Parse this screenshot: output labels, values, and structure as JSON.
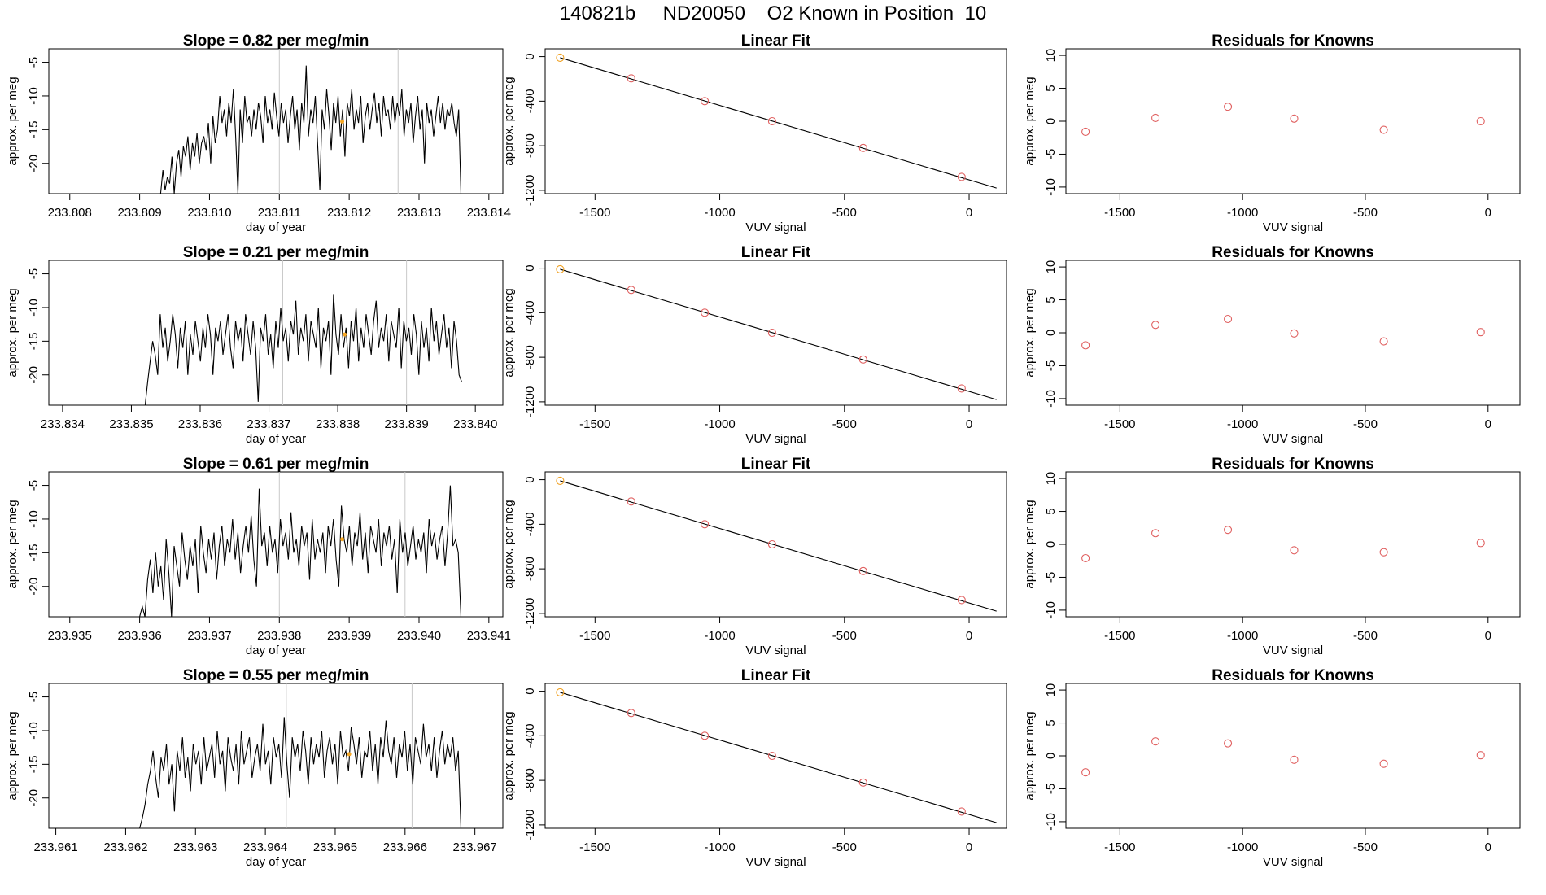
{
  "figure_title": "140821b     ND20050    O2 Known in Position  10",
  "chart_data": [
    {
      "type": "line",
      "title": "Slope =  0.82  per meg/min",
      "xlabel": "day of year",
      "ylabel": "approx. per meg",
      "xlim": [
        233.8077,
        233.8142
      ],
      "ylim": [
        -24.5,
        -3
      ],
      "xticks": [
        "233.808",
        "233.809",
        "233.810",
        "233.811",
        "233.812",
        "233.813",
        "233.814"
      ],
      "yticks": [
        "-5",
        "-10",
        "-15",
        "-20"
      ],
      "vlines": [
        233.811,
        233.8127
      ],
      "marker": {
        "x": 233.8119,
        "y": -13.8,
        "color": "#f5a623"
      },
      "trace": {
        "x_start": 233.8093,
        "x_end": 233.8136,
        "values": [
          -24.5,
          -21,
          -24,
          -22,
          -23,
          -19,
          -24.5,
          -20,
          -18,
          -22,
          -17.5,
          -19,
          -16,
          -21,
          -17,
          -19,
          -15.5,
          -20,
          -17,
          -16,
          -18,
          -14,
          -20,
          -13,
          -17,
          -15,
          -10,
          -14,
          -12,
          -16,
          -11,
          -14,
          -9,
          -16,
          -24.5,
          -12,
          -17,
          -10,
          -14,
          -13,
          -16,
          -12,
          -15,
          -11,
          -13,
          -17,
          -10,
          -14,
          -12,
          -15,
          -9.5,
          -13,
          -16,
          -11,
          -14,
          -12,
          -17,
          -13,
          -10,
          -15,
          -12,
          -18,
          -11,
          -14,
          -5.5,
          -16,
          -12,
          -14,
          -10,
          -17,
          -24,
          -12,
          -15,
          -9,
          -13,
          -18,
          -11,
          -14,
          -10,
          -16,
          -12,
          -19,
          -11,
          -13,
          -9,
          -15,
          -12,
          -14,
          -10,
          -17,
          -13,
          -11,
          -15,
          -12,
          -9.5,
          -14,
          -11,
          -16,
          -10,
          -13,
          -12,
          -15,
          -10,
          -14,
          -11,
          -13,
          -9,
          -16,
          -12,
          -14,
          -11,
          -17,
          -13,
          -10,
          -15,
          -12,
          -20,
          -11,
          -14,
          -12,
          -16,
          -13,
          -10,
          -14,
          -11,
          -15,
          -12,
          -13,
          -11,
          -14,
          -16,
          -12,
          -24.5
        ]
      }
    },
    {
      "type": "scatter",
      "title": "Linear Fit",
      "xlabel": "VUV signal",
      "ylabel": "approx. per meg",
      "xlim": [
        -1700,
        150
      ],
      "ylim": [
        -1230,
        70
      ],
      "xticks": [
        "-1500",
        "-1000",
        "-500",
        "0"
      ],
      "yticks": [
        "0",
        "-400",
        "-800",
        "-1200"
      ],
      "fit_line": [
        [
          -1640,
          -10
        ],
        [
          110,
          -1180
        ]
      ],
      "points": [
        [
          -1640,
          -10
        ],
        [
          -1355,
          -195
        ],
        [
          -1060,
          -400
        ],
        [
          -790,
          -580
        ],
        [
          -425,
          -820
        ],
        [
          -30,
          -1080
        ]
      ],
      "highlight_point_index": 0
    },
    {
      "type": "scatter",
      "title": "Residuals for Knowns",
      "xlabel": "VUV signal",
      "ylabel": "approx. per meg",
      "xlim": [
        -1720,
        130
      ],
      "ylim": [
        -11,
        11
      ],
      "xticks": [
        "-1500",
        "-1000",
        "-500",
        "0"
      ],
      "yticks": [
        "10",
        "5",
        "0",
        "-5",
        "-10"
      ],
      "points": [
        [
          -1640,
          -1.6
        ],
        [
          -1355,
          0.5
        ],
        [
          -1060,
          2.2
        ],
        [
          -790,
          0.4
        ],
        [
          -425,
          -1.3
        ],
        [
          -30,
          0
        ]
      ]
    },
    {
      "type": "line",
      "title": "Slope =  0.21  per meg/min",
      "xlabel": "day of year",
      "ylabel": "approx. per meg",
      "xlim": [
        233.8338,
        233.8404
      ],
      "ylim": [
        -24.5,
        -3
      ],
      "xticks": [
        "233.834",
        "233.835",
        "233.836",
        "233.837",
        "233.838",
        "233.839",
        "233.840"
      ],
      "yticks": [
        "-5",
        "-10",
        "-15",
        "-20"
      ],
      "vlines": [
        233.8372,
        233.839
      ],
      "marker": {
        "x": 233.8381,
        "y": -14,
        "color": "#f5a623"
      },
      "trace": {
        "x_start": 233.8352,
        "x_end": 233.8398,
        "values": [
          -24.5,
          -21,
          -18,
          -15,
          -17,
          -20,
          -11,
          -16,
          -13,
          -18,
          -15,
          -11,
          -14,
          -19,
          -13,
          -16,
          -12,
          -20,
          -14,
          -17,
          -12,
          -15,
          -18,
          -13,
          -16,
          -11,
          -14,
          -20,
          -13,
          -15,
          -12,
          -17,
          -14,
          -11,
          -16,
          -19,
          -12,
          -15,
          -13,
          -18,
          -11,
          -14,
          -17,
          -12,
          -16,
          -24,
          -13,
          -15,
          -11,
          -17,
          -14,
          -19,
          -12,
          -16,
          -10,
          -15,
          -13,
          -18,
          -12,
          -14,
          -9,
          -17,
          -13,
          -15,
          -11,
          -18,
          -12,
          -14,
          -16,
          -10,
          -19,
          -13,
          -15,
          -12,
          -20,
          -8,
          -14,
          -17,
          -11,
          -16,
          -13,
          -19,
          -12,
          -15,
          -10,
          -18,
          -13,
          -16,
          -11,
          -14,
          -17,
          -12,
          -9,
          -16,
          -13,
          -15,
          -11,
          -18,
          -12,
          -14,
          -16,
          -10,
          -19,
          -12,
          -15,
          -13,
          -17,
          -11,
          -14,
          -20,
          -12,
          -16,
          -13,
          -18,
          -10,
          -15,
          -12,
          -17,
          -14,
          -11,
          -16,
          -13,
          -19,
          -12,
          -15,
          -20,
          -21
        ]
      }
    },
    {
      "type": "scatter",
      "title": "Linear Fit",
      "xlabel": "VUV signal",
      "ylabel": "approx. per meg",
      "xlim": [
        -1700,
        150
      ],
      "ylim": [
        -1230,
        70
      ],
      "xticks": [
        "-1500",
        "-1000",
        "-500",
        "0"
      ],
      "yticks": [
        "0",
        "-400",
        "-800",
        "-1200"
      ],
      "fit_line": [
        [
          -1640,
          -10
        ],
        [
          110,
          -1180
        ]
      ],
      "points": [
        [
          -1640,
          -10
        ],
        [
          -1355,
          -195
        ],
        [
          -1060,
          -400
        ],
        [
          -790,
          -580
        ],
        [
          -425,
          -820
        ],
        [
          -30,
          -1080
        ]
      ],
      "highlight_point_index": 0
    },
    {
      "type": "scatter",
      "title": "Residuals for Knowns",
      "xlabel": "VUV signal",
      "ylabel": "approx. per meg",
      "xlim": [
        -1720,
        130
      ],
      "ylim": [
        -11,
        11
      ],
      "xticks": [
        "-1500",
        "-1000",
        "-500",
        "0"
      ],
      "yticks": [
        "10",
        "5",
        "0",
        "-5",
        "-10"
      ],
      "points": [
        [
          -1640,
          -1.9
        ],
        [
          -1355,
          1.2
        ],
        [
          -1060,
          2.1
        ],
        [
          -790,
          -0.1
        ],
        [
          -425,
          -1.3
        ],
        [
          -30,
          0.1
        ]
      ]
    },
    {
      "type": "line",
      "title": "Slope =  0.61  per meg/min",
      "xlabel": "day of year",
      "ylabel": "approx. per meg",
      "xlim": [
        233.9347,
        233.9412
      ],
      "ylim": [
        -24.5,
        -3
      ],
      "xticks": [
        "233.935",
        "233.936",
        "233.937",
        "233.938",
        "233.939",
        "233.940",
        "233.941"
      ],
      "yticks": [
        "-5",
        "-10",
        "-15",
        "-20"
      ],
      "vlines": [
        233.938,
        233.9398
      ],
      "marker": {
        "x": 233.9389,
        "y": -13,
        "color": "#f5a623"
      },
      "trace": {
        "x_start": 233.936,
        "x_end": 233.9406,
        "values": [
          -24.5,
          -23,
          -24.5,
          -19,
          -16,
          -21,
          -15,
          -20,
          -17,
          -22,
          -13,
          -18,
          -24.5,
          -14,
          -17,
          -20,
          -12,
          -16,
          -19,
          -14,
          -17,
          -13,
          -21,
          -11,
          -15,
          -18,
          -13,
          -16,
          -12,
          -19,
          -14,
          -11,
          -17,
          -13,
          -15,
          -10,
          -16,
          -12,
          -18,
          -14,
          -11,
          -15,
          -9.5,
          -16,
          -20,
          -5.5,
          -14,
          -12,
          -17,
          -11,
          -15,
          -13,
          -18,
          -10,
          -14,
          -12,
          -16,
          -9,
          -15,
          -13,
          -17,
          -11,
          -14,
          -12,
          -19,
          -10,
          -16,
          -13,
          -15,
          -12,
          -18,
          -11,
          -14,
          -10,
          -16,
          -20,
          -8,
          -13,
          -15,
          -11,
          -17,
          -12,
          -14,
          -9,
          -16,
          -12,
          -18,
          -11,
          -13,
          -15,
          -10,
          -17,
          -12,
          -14,
          -11,
          -16,
          -13,
          -21,
          -10,
          -15,
          -12,
          -17,
          -14,
          -11,
          -16,
          -13,
          -15,
          -12,
          -18,
          -10,
          -14,
          -12,
          -16,
          -13,
          -11,
          -17,
          -12,
          -5,
          -14,
          -13,
          -15,
          -24.5
        ]
      }
    },
    {
      "type": "scatter",
      "title": "Linear Fit",
      "xlabel": "VUV signal",
      "ylabel": "approx. per meg",
      "xlim": [
        -1700,
        150
      ],
      "ylim": [
        -1230,
        70
      ],
      "xticks": [
        "-1500",
        "-1000",
        "-500",
        "0"
      ],
      "yticks": [
        "0",
        "-400",
        "-800",
        "-1200"
      ],
      "fit_line": [
        [
          -1640,
          -10
        ],
        [
          110,
          -1180
        ]
      ],
      "points": [
        [
          -1640,
          -10
        ],
        [
          -1355,
          -195
        ],
        [
          -1060,
          -400
        ],
        [
          -790,
          -580
        ],
        [
          -425,
          -820
        ],
        [
          -30,
          -1080
        ]
      ],
      "highlight_point_index": 0
    },
    {
      "type": "scatter",
      "title": "Residuals for Knowns",
      "xlabel": "VUV signal",
      "ylabel": "approx. per meg",
      "xlim": [
        -1720,
        130
      ],
      "ylim": [
        -11,
        11
      ],
      "xticks": [
        "-1500",
        "-1000",
        "-500",
        "0"
      ],
      "yticks": [
        "10",
        "5",
        "0",
        "-5",
        "-10"
      ],
      "points": [
        [
          -1640,
          -2.1
        ],
        [
          -1355,
          1.7
        ],
        [
          -1060,
          2.2
        ],
        [
          -790,
          -0.9
        ],
        [
          -425,
          -1.2
        ],
        [
          -30,
          0.2
        ]
      ]
    },
    {
      "type": "line",
      "title": "Slope =  0.55  per meg/min",
      "xlabel": "day of year",
      "ylabel": "approx. per meg",
      "xlim": [
        233.9609,
        233.9674
      ],
      "ylim": [
        -24.5,
        -3
      ],
      "xticks": [
        "233.961",
        "233.962",
        "233.963",
        "233.964",
        "233.965",
        "233.966",
        "233.967"
      ],
      "yticks": [
        "-5",
        "-10",
        "-15",
        "-20"
      ],
      "vlines": [
        233.9643,
        233.9661
      ],
      "marker": {
        "x": 233.9652,
        "y": -13.5,
        "color": "#f5a623"
      },
      "trace": {
        "x_start": 233.9622,
        "x_end": 233.9668,
        "values": [
          -24.5,
          -23,
          -21,
          -18,
          -16,
          -13,
          -17,
          -20,
          -14,
          -16,
          -12,
          -18,
          -15,
          -22,
          -13,
          -16,
          -11,
          -17,
          -14,
          -19,
          -12,
          -15,
          -13,
          -18,
          -11,
          -16,
          -14,
          -12,
          -17,
          -10,
          -15,
          -13,
          -19,
          -11,
          -14,
          -16,
          -12,
          -18,
          -10,
          -15,
          -13,
          -11,
          -17,
          -14,
          -12,
          -16,
          -9,
          -15,
          -13,
          -18,
          -11,
          -14,
          -12,
          -17,
          -8,
          -15,
          -20,
          -11,
          -14,
          -12,
          -16,
          -10,
          -13,
          -18,
          -11,
          -15,
          -12,
          -14,
          -10,
          -17,
          -13,
          -11,
          -15,
          -12,
          -18,
          -10,
          -14,
          -13,
          -16,
          -9.5,
          -12,
          -15,
          -11,
          -17,
          -13,
          -14,
          -10,
          -16,
          -12,
          -18,
          -11,
          -14,
          -8.5,
          -13,
          -15,
          -11,
          -17,
          -12,
          -14,
          -10,
          -16,
          -12,
          -18,
          -11,
          -13,
          -15,
          -9,
          -14,
          -12,
          -16,
          -11,
          -17,
          -13,
          -10,
          -15,
          -12,
          -14,
          -11,
          -16,
          -13,
          -24.5
        ]
      }
    },
    {
      "type": "scatter",
      "title": "Linear Fit",
      "xlabel": "VUV signal",
      "ylabel": "approx. per meg",
      "xlim": [
        -1700,
        150
      ],
      "ylim": [
        -1230,
        70
      ],
      "xticks": [
        "-1500",
        "-1000",
        "-500",
        "0"
      ],
      "yticks": [
        "0",
        "-400",
        "-800",
        "-1200"
      ],
      "fit_line": [
        [
          -1640,
          -10
        ],
        [
          110,
          -1180
        ]
      ],
      "points": [
        [
          -1640,
          -10
        ],
        [
          -1355,
          -195
        ],
        [
          -1060,
          -400
        ],
        [
          -790,
          -580
        ],
        [
          -425,
          -820
        ],
        [
          -30,
          -1080
        ]
      ],
      "highlight_point_index": 0
    },
    {
      "type": "scatter",
      "title": "Residuals for Knowns",
      "xlabel": "VUV signal",
      "ylabel": "approx. per meg",
      "xlim": [
        -1720,
        130
      ],
      "ylim": [
        -11,
        11
      ],
      "xticks": [
        "-1500",
        "-1000",
        "-500",
        "0"
      ],
      "yticks": [
        "10",
        "5",
        "0",
        "-5",
        "-10"
      ],
      "points": [
        [
          -1640,
          -2.5
        ],
        [
          -1355,
          2.2
        ],
        [
          -1060,
          1.9
        ],
        [
          -790,
          -0.6
        ],
        [
          -425,
          -1.2
        ],
        [
          -30,
          0.1
        ]
      ]
    }
  ],
  "colors": {
    "trace": "#000000",
    "vline": "#c8c8c8",
    "point": "#e06060",
    "highlight": "#f0a020",
    "marker": "#f5a623"
  }
}
